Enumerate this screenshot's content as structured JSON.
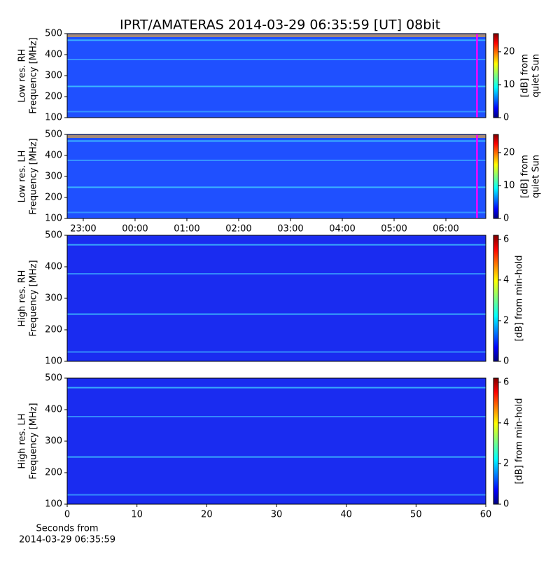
{
  "figure": {
    "title": "IPRT/AMATERAS 2014-03-29 06:35:59 [UT]   08bit"
  },
  "chart_data": [
    {
      "type": "heatmap",
      "ylabel": [
        "Low res. RH",
        "Frequency [MHz]"
      ],
      "xlim": [
        -1.31,
        6.77
      ],
      "ylim": [
        100,
        500
      ],
      "yticks": [
        100,
        200,
        300,
        400,
        500
      ],
      "cursor_x": 6.6,
      "cursor_color": "#ff00ff",
      "colormap": "jet",
      "colorbar": {
        "label": [
          "[dB] from",
          "quiet Sun"
        ],
        "clim": [
          0,
          25.5
        ],
        "cticks": [
          0,
          10,
          20
        ]
      }
    },
    {
      "type": "heatmap",
      "ylabel": [
        "Low res. LH",
        "Frequency [MHz]"
      ],
      "xlim": [
        -1.31,
        6.77
      ],
      "ylim": [
        100,
        500
      ],
      "yticks": [
        100,
        200,
        300,
        400,
        500
      ],
      "xticks": [
        {
          "value": -1,
          "label": "23:00"
        },
        {
          "value": 0,
          "label": "00:00"
        },
        {
          "value": 1,
          "label": "01:00"
        },
        {
          "value": 2,
          "label": "02:00"
        },
        {
          "value": 3,
          "label": "03:00"
        },
        {
          "value": 4,
          "label": "04:00"
        },
        {
          "value": 5,
          "label": "05:00"
        },
        {
          "value": 6,
          "label": "06:00"
        }
      ],
      "cursor_x": 6.6,
      "cursor_color": "#ff00ff",
      "colormap": "jet",
      "colorbar": {
        "label": [
          "[dB] from",
          "quiet Sun"
        ],
        "clim": [
          0,
          25.5
        ],
        "cticks": [
          0,
          10,
          20
        ]
      }
    },
    {
      "type": "heatmap",
      "ylabel": [
        "High res. RH",
        "Frequency [MHz]"
      ],
      "xlim": [
        0,
        60
      ],
      "ylim": [
        100,
        500
      ],
      "yticks": [
        100,
        200,
        300,
        400,
        500
      ],
      "colormap": "jet",
      "colorbar": {
        "label": [
          "[dB] from min-hold"
        ],
        "clim": [
          0,
          6.2
        ],
        "cticks": [
          0,
          2,
          4,
          6
        ]
      }
    },
    {
      "type": "heatmap",
      "ylabel": [
        "High res. LH",
        "Frequency [MHz]"
      ],
      "xlim": [
        0,
        60
      ],
      "ylim": [
        100,
        500
      ],
      "yticks": [
        100,
        200,
        300,
        400,
        500
      ],
      "xticks": [
        0,
        10,
        20,
        30,
        40,
        50,
        60
      ],
      "xlabel": [
        "Seconds from",
        "2014-03-29 06:35:59"
      ],
      "colormap": "jet",
      "colorbar": {
        "label": [
          "[dB] from min-hold"
        ],
        "clim": [
          0,
          6.2
        ],
        "cticks": [
          0,
          2,
          4,
          6
        ]
      }
    }
  ]
}
